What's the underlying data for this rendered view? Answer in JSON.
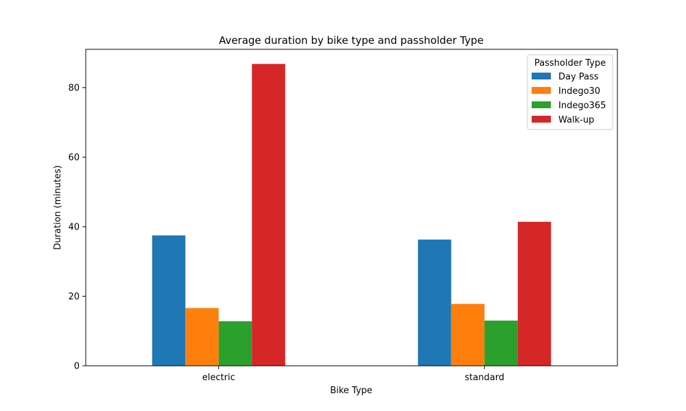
{
  "chart_data": {
    "type": "bar",
    "title": "Average duration by bike type and passholder Type",
    "xlabel": "Bike Type",
    "ylabel": "Duration (minutes)",
    "categories": [
      "electric",
      "standard"
    ],
    "ylim": [
      0,
      91
    ],
    "yticks": [
      0,
      20,
      40,
      60,
      80
    ],
    "grid": false,
    "legend": {
      "title": "Passholder Type",
      "placement": "top-right"
    },
    "series": [
      {
        "name": "Day Pass",
        "color": "#1f77b4",
        "values": [
          37.5,
          36.3
        ]
      },
      {
        "name": "Indego30",
        "color": "#ff7f0e",
        "values": [
          16.6,
          17.8
        ]
      },
      {
        "name": "Indego365",
        "color": "#2ca02c",
        "values": [
          12.8,
          13.0
        ]
      },
      {
        "name": "Walk-up",
        "color": "#d62728",
        "values": [
          86.8,
          41.4
        ]
      }
    ]
  }
}
